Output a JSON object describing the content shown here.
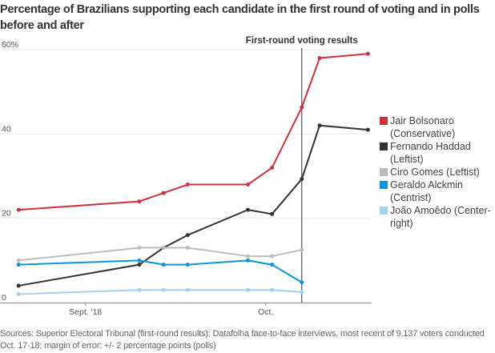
{
  "chart_data": {
    "type": "line",
    "title": "Percentage of Brazilians supporting each candidate in the first round of voting and in polls before and after",
    "xlabel": "",
    "ylabel": "",
    "ylim": [
      0,
      60
    ],
    "yticks": [
      {
        "value": 60,
        "label": "60%"
      },
      {
        "value": 40,
        "label": "40"
      },
      {
        "value": 20,
        "label": "20"
      },
      {
        "value": 0,
        "label": "0"
      }
    ],
    "xticks": [
      {
        "label": "Sept. '18",
        "pos": 0.23
      },
      {
        "label": "Oct.",
        "pos": 0.715
      }
    ],
    "x": [
      0.05,
      0.375,
      0.44,
      0.505,
      0.667,
      0.732,
      0.812,
      0.86,
      0.99
    ],
    "annotation": {
      "label": "First-round voting results",
      "x": 0.812
    },
    "grid": true,
    "legend": "right",
    "series": [
      {
        "name": "Jair Bolsonaro (Conservative)",
        "color": "#d0323d",
        "values": [
          22,
          24,
          26,
          28,
          28,
          32,
          46.3,
          58,
          59
        ]
      },
      {
        "name": "Fernando Haddad (Leftist)",
        "color": "#333333",
        "values": [
          4,
          9,
          13,
          16,
          22,
          21,
          29.3,
          42,
          41
        ]
      },
      {
        "name": "Ciro Gomes (Leftist)",
        "color": "#bdbdbd",
        "values": [
          10,
          13,
          13,
          13,
          11,
          11,
          12.5,
          null,
          null
        ]
      },
      {
        "name": "Geraldo Alckmin (Centrist)",
        "color": "#0f95d8",
        "values": [
          9,
          10,
          9,
          9,
          10,
          9,
          4.8,
          null,
          null
        ]
      },
      {
        "name": "João Amoêdo (Center-right)",
        "color": "#a3d2f1",
        "values": [
          2,
          3,
          3,
          3,
          3,
          3,
          2.5,
          null,
          null
        ]
      }
    ]
  },
  "legend": {
    "items": [
      {
        "label": "Jair Bolsonaro (Conservative)",
        "color": "#d0323d"
      },
      {
        "label": "Fernando Haddad (Leftist)",
        "color": "#333333"
      },
      {
        "label": "Ciro Gomes (Leftist)",
        "color": "#bdbdbd"
      },
      {
        "label": "Geraldo Alckmin (Centrist)",
        "color": "#0f95d8"
      },
      {
        "label": "João Amoêdo (Center-right)",
        "color": "#a3d2f1"
      }
    ]
  },
  "source": "Sources: Superior Electoral Tribunal (first-round results); Datafolha face-to-face interviews, most recent of 9,137 voters conducted Oct. 17-18; margin of error: +/- 2 percentage points (polls)"
}
